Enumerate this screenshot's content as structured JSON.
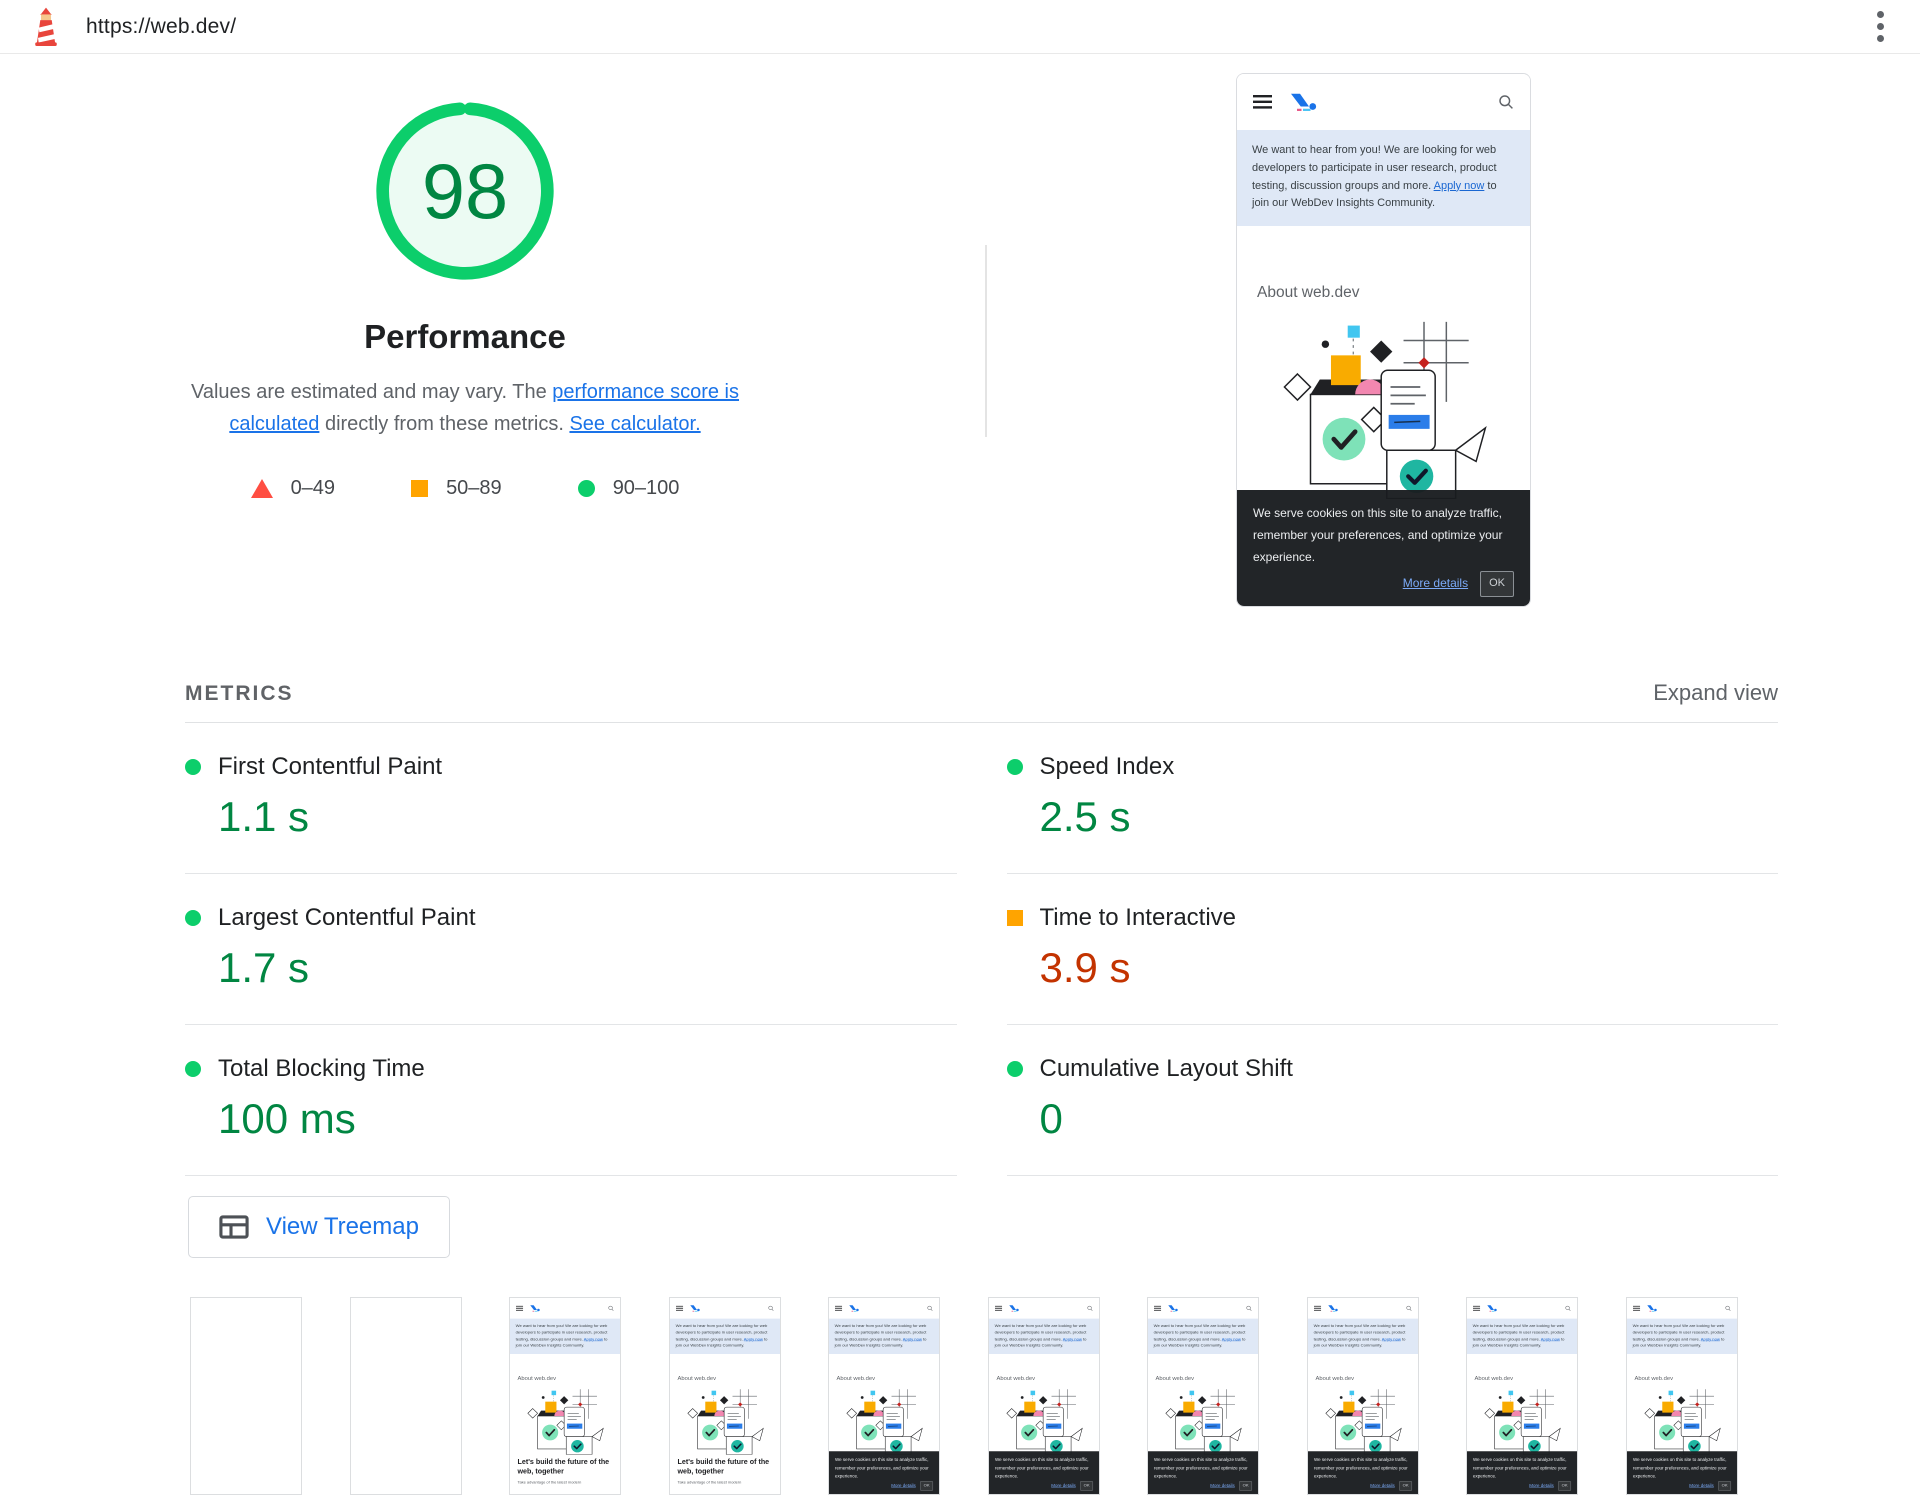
{
  "topbar": {
    "url": "https://web.dev/"
  },
  "score": {
    "value": "98",
    "title": "Performance",
    "desc_pre": "Values are estimated and may vary. The ",
    "desc_link1": "performance score is calculated",
    "desc_mid": " directly from these metrics. ",
    "desc_link2": "See calculator.",
    "legend": [
      {
        "shape": "triangle",
        "color": "#ff4e42",
        "label": "0–49"
      },
      {
        "shape": "square",
        "color": "#ffa400",
        "label": "50–89"
      },
      {
        "shape": "circle",
        "color": "#0cce6b",
        "label": "90–100"
      }
    ]
  },
  "metrics": {
    "heading": "METRICS",
    "expand_label": "Expand view",
    "items": [
      {
        "name": "First Contentful Paint",
        "value": "1.1 s",
        "rating": "pass"
      },
      {
        "name": "Speed Index",
        "value": "2.5 s",
        "rating": "pass"
      },
      {
        "name": "Largest Contentful Paint",
        "value": "1.7 s",
        "rating": "pass"
      },
      {
        "name": "Time to Interactive",
        "value": "3.9 s",
        "rating": "average"
      },
      {
        "name": "Total Blocking Time",
        "value": "100 ms",
        "rating": "pass"
      },
      {
        "name": "Cumulative Layout Shift",
        "value": "0",
        "rating": "pass"
      }
    ]
  },
  "treemap_button": {
    "label": "View Treemap"
  },
  "webpage": {
    "banner_pre": "We want to hear from you! We are looking for web developers to participate in user research, product testing, discussion groups and more. ",
    "banner_link": "Apply now",
    "banner_post": " to join our WebDev Insights Community.",
    "about_heading": "About web.dev",
    "hero_heading": "Let's build the future of the web, together",
    "hero_sub": "Take advantage of the latest modern",
    "cookie_text": "We serve cookies on this site to analyze traffic, remember your preferences, and optimize your experience.",
    "cookie_more": "More details",
    "cookie_ok": "OK"
  },
  "filmstrip": {
    "frames": [
      "blank",
      "blank",
      "page",
      "page",
      "cookie",
      "cookie",
      "cookie",
      "cookie",
      "cookie",
      "cookie"
    ]
  },
  "colors": {
    "accent_blue": "#1a73e8",
    "pass_icon": "#0cce6b",
    "pass_text": "#018642",
    "average_icon": "#ffa400",
    "average_text": "#c33300",
    "fail_icon": "#ff4e42"
  },
  "icons": [
    "lighthouse-icon",
    "kebab-menu-icon",
    "hamburger-icon",
    "webdev-logo-icon",
    "search-icon",
    "treemap-icon",
    "pass-circle-icon",
    "average-square-icon",
    "fail-triangle-icon"
  ]
}
